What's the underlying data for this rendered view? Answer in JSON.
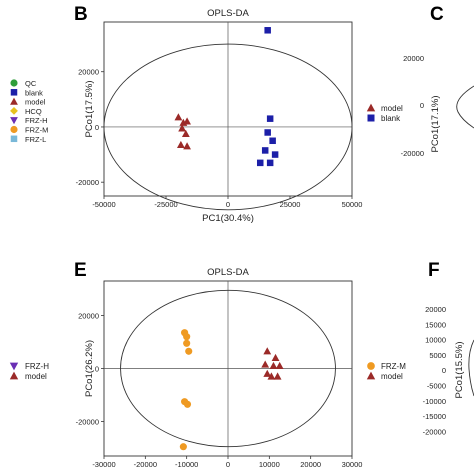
{
  "colors": {
    "qc": "#2e9e3a",
    "blank": "#1c1fa8",
    "model": "#9b2a28",
    "hcq": "#e7c21f",
    "frz_h": "#6a2fb4",
    "frz_m": "#ef9a22",
    "frz_l": "#79b8d8",
    "axis": "#333333",
    "ellipse": "#333333"
  },
  "left_legend": {
    "items": [
      {
        "label": "QC",
        "shape": "circle",
        "color_key": "qc"
      },
      {
        "label": "blank",
        "shape": "square",
        "color_key": "blank"
      },
      {
        "label": "model",
        "shape": "triangle",
        "color_key": "model"
      },
      {
        "label": "HCQ",
        "shape": "diamond",
        "color_key": "hcq"
      },
      {
        "label": "FRZ-H",
        "shape": "triangle-down",
        "color_key": "frz_h"
      },
      {
        "label": "FRZ-M",
        "shape": "circle",
        "color_key": "frz_m"
      },
      {
        "label": "FRZ-L",
        "shape": "square",
        "color_key": "frz_l"
      }
    ]
  },
  "left_legend_bottom": {
    "items": [
      {
        "label": "FRZ-H",
        "shape": "triangle-down",
        "color_key": "frz_h"
      },
      {
        "label": "model",
        "shape": "triangle",
        "color_key": "model"
      }
    ]
  },
  "panel_labels": {
    "b": "B",
    "c": "C",
    "e": "E",
    "f": "F"
  },
  "panel_c": {
    "ylabel": "PCo1(17.1%)",
    "yticks": [
      "20000",
      "0",
      "-20000"
    ]
  },
  "panel_f": {
    "ylabel": "PCo1(15.5%)",
    "yticks": [
      "20000",
      "15000",
      "10000",
      "5000",
      "0",
      "-5000",
      "-10000",
      "-15000",
      "-20000"
    ]
  },
  "chart_data": [
    {
      "type": "scatter",
      "panel": "B",
      "title": "OPLS-DA",
      "xlabel": "PC1(30.4%)",
      "ylabel": "PCo1(17.5%)",
      "xlim": [
        -50000,
        50000
      ],
      "ylim": [
        -25000,
        38000
      ],
      "xticks": [
        -50000,
        -25000,
        0,
        25000,
        50000
      ],
      "xticklabels": [
        "-50000",
        "-25000",
        "0",
        "25000",
        "50000"
      ],
      "yticks": [
        20000,
        0,
        -20000
      ],
      "yticklabels": [
        "20000",
        "0",
        "-20000"
      ],
      "ellipse": {
        "rx": 50000,
        "ry": 30000
      },
      "legend": [
        {
          "label": "model",
          "shape": "triangle",
          "color_key": "model"
        },
        {
          "label": "blank",
          "shape": "square",
          "color_key": "blank"
        }
      ],
      "series": [
        {
          "name": "model",
          "shape": "triangle",
          "color_key": "model",
          "points": [
            [
              -20000,
              3500
            ],
            [
              -18000,
              1500
            ],
            [
              -16500,
              2000
            ],
            [
              -18500,
              -500
            ],
            [
              -17000,
              -2500
            ],
            [
              -19000,
              -6500
            ],
            [
              -16500,
              -7000
            ]
          ]
        },
        {
          "name": "blank",
          "shape": "square",
          "color_key": "blank",
          "points": [
            [
              16000,
              35000
            ],
            [
              17000,
              3000
            ],
            [
              16000,
              -2000
            ],
            [
              18000,
              -5000
            ],
            [
              15000,
              -8500
            ],
            [
              19000,
              -10000
            ],
            [
              13000,
              -13000
            ],
            [
              17000,
              -13000
            ]
          ]
        }
      ]
    },
    {
      "type": "scatter",
      "panel": "E",
      "title": "OPLS-DA",
      "xlabel": "PC1(11.5%)",
      "ylabel": "PCo1(26.2%)",
      "xlim": [
        -30000,
        30000
      ],
      "ylim": [
        -33000,
        33000
      ],
      "xticks": [
        -30000,
        -20000,
        -10000,
        0,
        10000,
        20000,
        30000
      ],
      "xticklabels": [
        "-30000",
        "-20000",
        "-10000",
        "0",
        "10000",
        "20000",
        "30000"
      ],
      "yticks": [
        20000,
        0,
        -20000
      ],
      "yticklabels": [
        "20000",
        "0",
        "-20000"
      ],
      "ellipse": {
        "rx": 26000,
        "ry": 29500
      },
      "legend": [
        {
          "label": "FRZ-M",
          "shape": "circle",
          "color_key": "frz_m"
        },
        {
          "label": "model",
          "shape": "triangle",
          "color_key": "model"
        }
      ],
      "series": [
        {
          "name": "FRZ-M",
          "shape": "circle",
          "color_key": "frz_m",
          "points": [
            [
              -10500,
              13500
            ],
            [
              -10000,
              12000
            ],
            [
              -10000,
              9500
            ],
            [
              -9500,
              6500
            ],
            [
              -10500,
              -12500
            ],
            [
              -9800,
              -13500
            ],
            [
              -10800,
              -29500
            ]
          ]
        },
        {
          "name": "model",
          "shape": "triangle",
          "color_key": "model",
          "points": [
            [
              9500,
              6500
            ],
            [
              11500,
              4000
            ],
            [
              9000,
              1500
            ],
            [
              11000,
              1000
            ],
            [
              12500,
              1000
            ],
            [
              9500,
              -2000
            ],
            [
              10500,
              -3000
            ],
            [
              12000,
              -3000
            ]
          ]
        }
      ]
    }
  ]
}
